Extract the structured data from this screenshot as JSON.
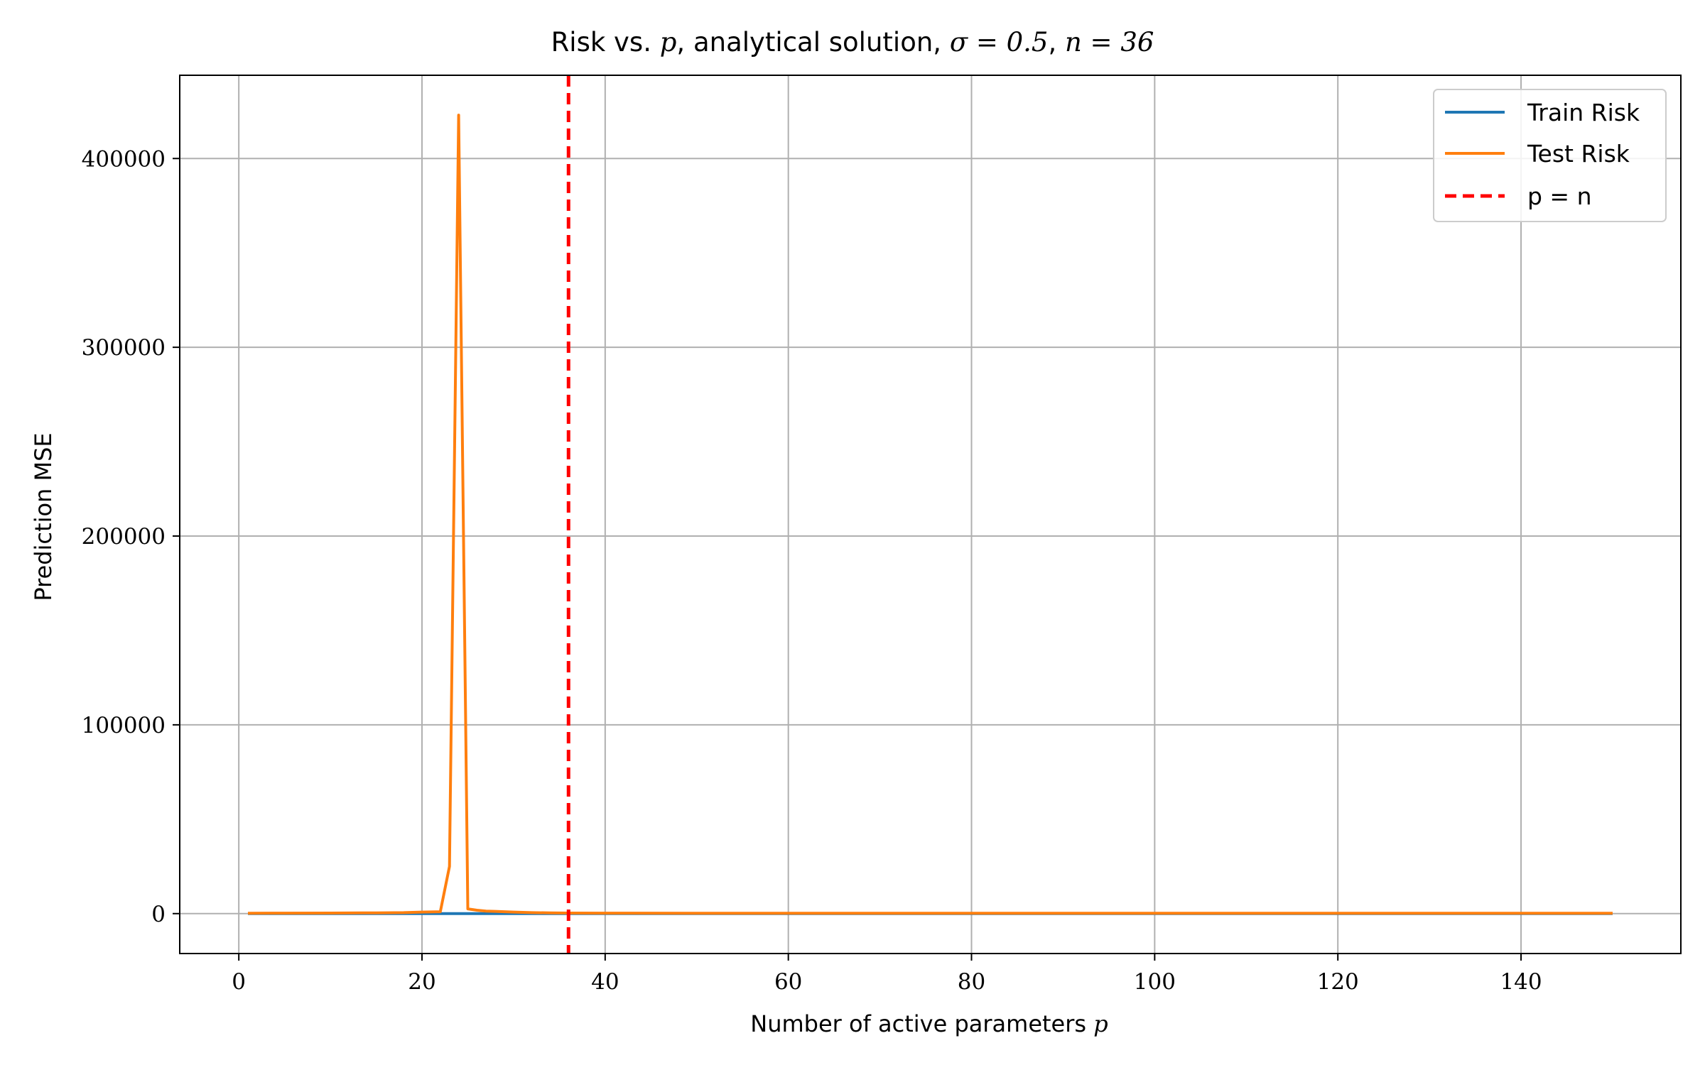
{
  "chart_data": {
    "type": "line",
    "title": "Risk vs. p, analytical solution, σ = 0.5, n = 36",
    "title_parts": {
      "prefix": "Risk vs. ",
      "p": "p",
      "mid": ", analytical solution, ",
      "sigma_expr": "σ = 0.5",
      "sep": ", ",
      "n_expr": "n = 36"
    },
    "xlabel": "Number of active parameters p",
    "xlabel_parts": {
      "text": "Number of active parameters ",
      "var": "p"
    },
    "ylabel": "Prediction MSE",
    "xlim": [
      -6.45,
      157.45
    ],
    "ylim": [
      -21150,
      444100
    ],
    "xticks": [
      0,
      20,
      40,
      60,
      80,
      100,
      120,
      140
    ],
    "yticks": [
      0,
      100000,
      200000,
      300000,
      400000
    ],
    "grid": true,
    "legend_position": "top-right",
    "colors": {
      "train": "#1f77b4",
      "test": "#ff7f0e",
      "threshold": "#ff0000",
      "grid": "#b0b0b0"
    },
    "series": [
      {
        "name": "Train Risk",
        "color": "#1f77b4",
        "x": [
          1,
          5,
          10,
          15,
          18,
          20,
          21,
          22,
          23,
          24,
          25,
          26,
          27,
          28,
          30,
          32,
          34,
          36,
          40,
          50,
          60,
          80,
          100,
          120,
          140,
          150
        ],
        "y": [
          0,
          0,
          0,
          0,
          0,
          0,
          0,
          0,
          0,
          0,
          0,
          0,
          0,
          0,
          0,
          0,
          0,
          0,
          0,
          0,
          0,
          0,
          0,
          0,
          0,
          0
        ]
      },
      {
        "name": "Test Risk",
        "color": "#ff7f0e",
        "x": [
          1,
          5,
          10,
          15,
          18,
          20,
          21,
          22,
          23,
          24,
          25,
          26,
          27,
          28,
          30,
          32,
          34,
          36,
          40,
          50,
          60,
          80,
          100,
          120,
          140,
          150
        ],
        "y": [
          200,
          250,
          300,
          400,
          500,
          800,
          900,
          1000,
          25000,
          423000,
          2500,
          1800,
          1300,
          1200,
          800,
          500,
          400,
          300,
          250,
          200,
          200,
          200,
          200,
          200,
          200,
          200
        ]
      }
    ],
    "vlines": [
      {
        "name": "p = n",
        "x": 36,
        "color": "#ff0000",
        "style": "dashed"
      }
    ],
    "legend": [
      "Train Risk",
      "Test Risk",
      "p = n"
    ]
  }
}
